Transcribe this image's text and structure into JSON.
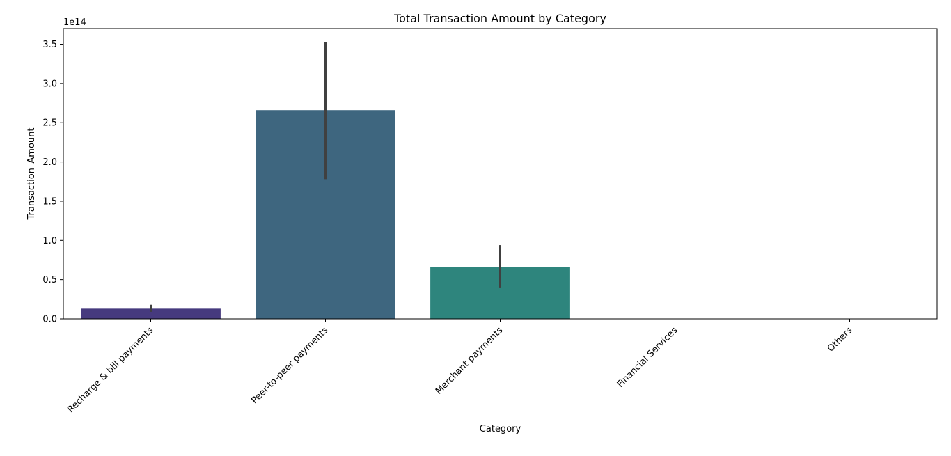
{
  "chart_data": {
    "type": "bar",
    "title": "Total Transaction Amount by Category",
    "xlabel": "Category",
    "ylabel": "Transaction_Amount",
    "y_offset_label": "1e14",
    "y_scale": 100000000000000.0,
    "ylim": [
      0,
      3.7
    ],
    "yticks": [
      0.0,
      0.5,
      1.0,
      1.5,
      2.0,
      2.5,
      3.0,
      3.5
    ],
    "ytick_labels": [
      "0.0",
      "0.5",
      "1.0",
      "1.5",
      "2.0",
      "2.5",
      "3.0",
      "3.5"
    ],
    "categories": [
      "Recharge & bill payments",
      "Peer-to-peer payments",
      "Merchant payments",
      "Financial Services",
      "Others"
    ],
    "values": [
      0.13,
      2.66,
      0.66,
      0.0,
      0.0
    ],
    "error_low": [
      0.09,
      1.78,
      0.4,
      0.0,
      0.0
    ],
    "error_high": [
      0.18,
      3.53,
      0.94,
      0.0,
      0.0
    ],
    "colors": [
      "#463a7e",
      "#3e667f",
      "#2e857d",
      "#3aa87a",
      "#69c261"
    ],
    "error_color": "#404040",
    "grid": false
  }
}
